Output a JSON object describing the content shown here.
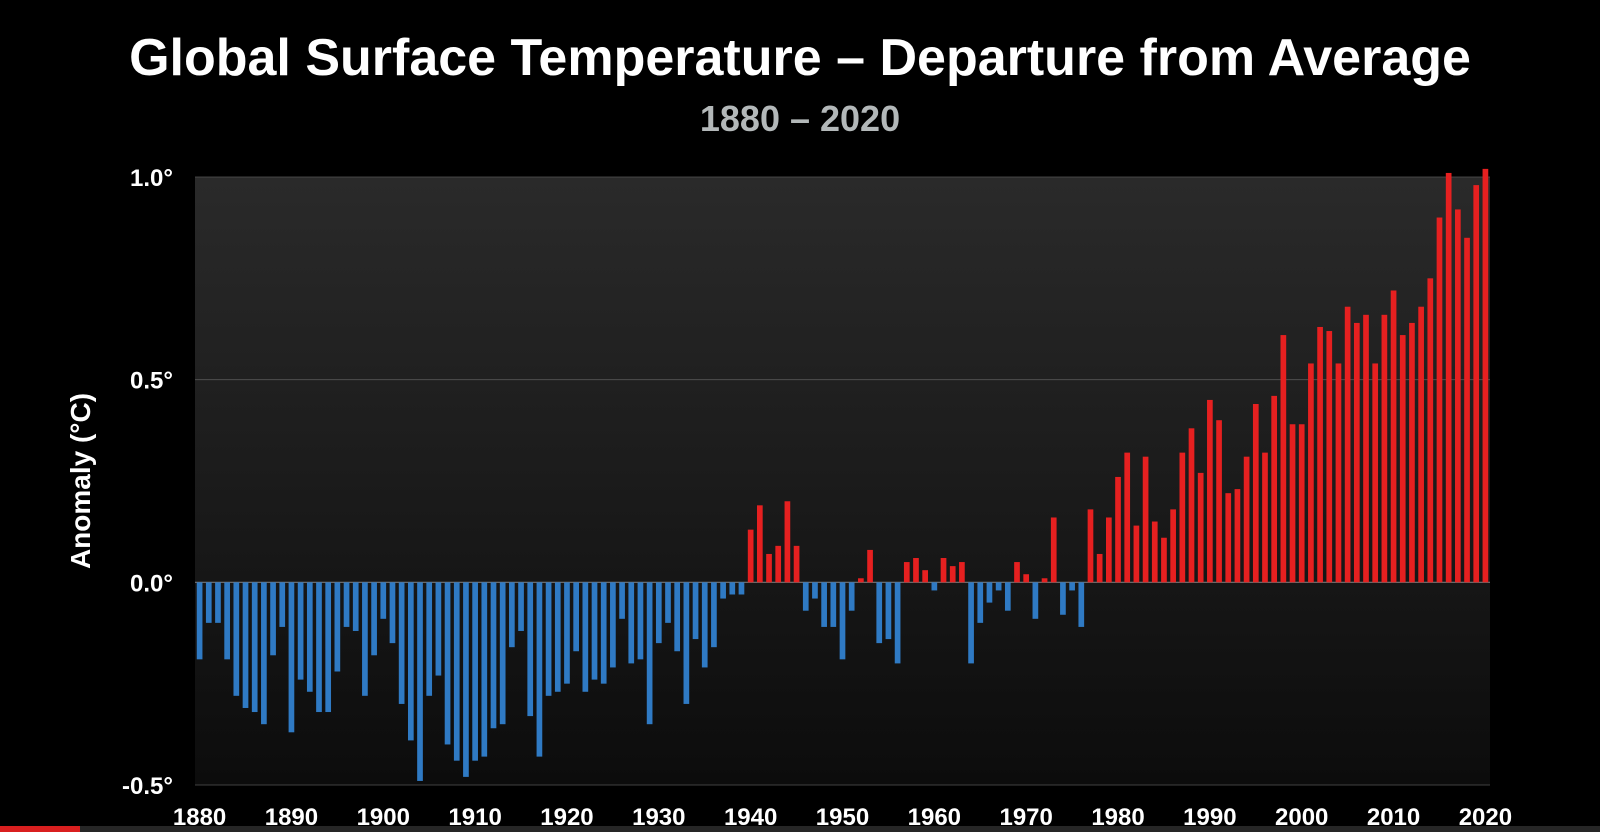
{
  "chart_data": {
    "type": "bar",
    "title": "Global Surface Temperature – Departure from Average",
    "subtitle": "1880 – 2020",
    "ylabel": "Anomaly (°C)",
    "xlabel": "",
    "ylim": [
      -0.5,
      1.0
    ],
    "y_ticks": [
      {
        "value": 1.0,
        "label": "1.0°"
      },
      {
        "value": 0.5,
        "label": "0.5°"
      },
      {
        "value": 0.0,
        "label": "0.0°"
      },
      {
        "value": -0.5,
        "label": "-0.5°"
      }
    ],
    "x_tick_labels": [
      "1880",
      "1890",
      "1900",
      "1910",
      "1920",
      "1930",
      "1940",
      "1950",
      "1960",
      "1970",
      "1980",
      "1990",
      "2000",
      "2010",
      "2020"
    ],
    "grid": "horizontal",
    "colors": {
      "negative": "#2f7ac4",
      "positive": "#e62020",
      "plot_bg_top": "#2a2a2a",
      "plot_bg_bottom": "#0c0c0c"
    },
    "x": [
      1880,
      1881,
      1882,
      1883,
      1884,
      1885,
      1886,
      1887,
      1888,
      1889,
      1890,
      1891,
      1892,
      1893,
      1894,
      1895,
      1896,
      1897,
      1898,
      1899,
      1900,
      1901,
      1902,
      1903,
      1904,
      1905,
      1906,
      1907,
      1908,
      1909,
      1910,
      1911,
      1912,
      1913,
      1914,
      1915,
      1916,
      1917,
      1918,
      1919,
      1920,
      1921,
      1922,
      1923,
      1924,
      1925,
      1926,
      1927,
      1928,
      1929,
      1930,
      1931,
      1932,
      1933,
      1934,
      1935,
      1936,
      1937,
      1938,
      1939,
      1940,
      1941,
      1942,
      1943,
      1944,
      1945,
      1946,
      1947,
      1948,
      1949,
      1950,
      1951,
      1952,
      1953,
      1954,
      1955,
      1956,
      1957,
      1958,
      1959,
      1960,
      1961,
      1962,
      1963,
      1964,
      1965,
      1966,
      1967,
      1968,
      1969,
      1970,
      1971,
      1972,
      1973,
      1974,
      1975,
      1976,
      1977,
      1978,
      1979,
      1980,
      1981,
      1982,
      1983,
      1984,
      1985,
      1986,
      1987,
      1988,
      1989,
      1990,
      1991,
      1992,
      1993,
      1994,
      1995,
      1996,
      1997,
      1998,
      1999,
      2000,
      2001,
      2002,
      2003,
      2004,
      2005,
      2006,
      2007,
      2008,
      2009,
      2010,
      2011,
      2012,
      2013,
      2014,
      2015,
      2016,
      2017,
      2018,
      2019,
      2020
    ],
    "values": [
      -0.19,
      -0.1,
      -0.1,
      -0.19,
      -0.28,
      -0.31,
      -0.32,
      -0.35,
      -0.18,
      -0.11,
      -0.37,
      -0.24,
      -0.27,
      -0.32,
      -0.32,
      -0.22,
      -0.11,
      -0.12,
      -0.28,
      -0.18,
      -0.09,
      -0.15,
      -0.3,
      -0.39,
      -0.49,
      -0.28,
      -0.23,
      -0.4,
      -0.44,
      -0.48,
      -0.44,
      -0.43,
      -0.36,
      -0.35,
      -0.16,
      -0.12,
      -0.33,
      -0.43,
      -0.28,
      -0.27,
      -0.25,
      -0.17,
      -0.27,
      -0.24,
      -0.25,
      -0.21,
      -0.09,
      -0.2,
      -0.19,
      -0.35,
      -0.15,
      -0.1,
      -0.17,
      -0.3,
      -0.14,
      -0.21,
      -0.16,
      -0.04,
      -0.03,
      -0.03,
      0.13,
      0.19,
      0.07,
      0.09,
      0.2,
      0.09,
      -0.07,
      -0.04,
      -0.11,
      -0.11,
      -0.19,
      -0.07,
      0.01,
      0.08,
      -0.15,
      -0.14,
      -0.2,
      0.05,
      0.06,
      0.03,
      -0.02,
      0.06,
      0.04,
      0.05,
      -0.2,
      -0.1,
      -0.05,
      -0.02,
      -0.07,
      0.05,
      0.02,
      -0.09,
      0.01,
      0.16,
      -0.08,
      -0.02,
      -0.11,
      0.18,
      0.07,
      0.16,
      0.26,
      0.32,
      0.14,
      0.31,
      0.15,
      0.11,
      0.18,
      0.32,
      0.38,
      0.27,
      0.45,
      0.4,
      0.22,
      0.23,
      0.31,
      0.44,
      0.32,
      0.46,
      0.61,
      0.39,
      0.39,
      0.54,
      0.63,
      0.62,
      0.54,
      0.68,
      0.64,
      0.66,
      0.54,
      0.66,
      0.72,
      0.61,
      0.64,
      0.68,
      0.75,
      0.9,
      1.01,
      0.92,
      0.85,
      0.98,
      1.02
    ]
  },
  "player": {
    "progress": 0.05
  }
}
